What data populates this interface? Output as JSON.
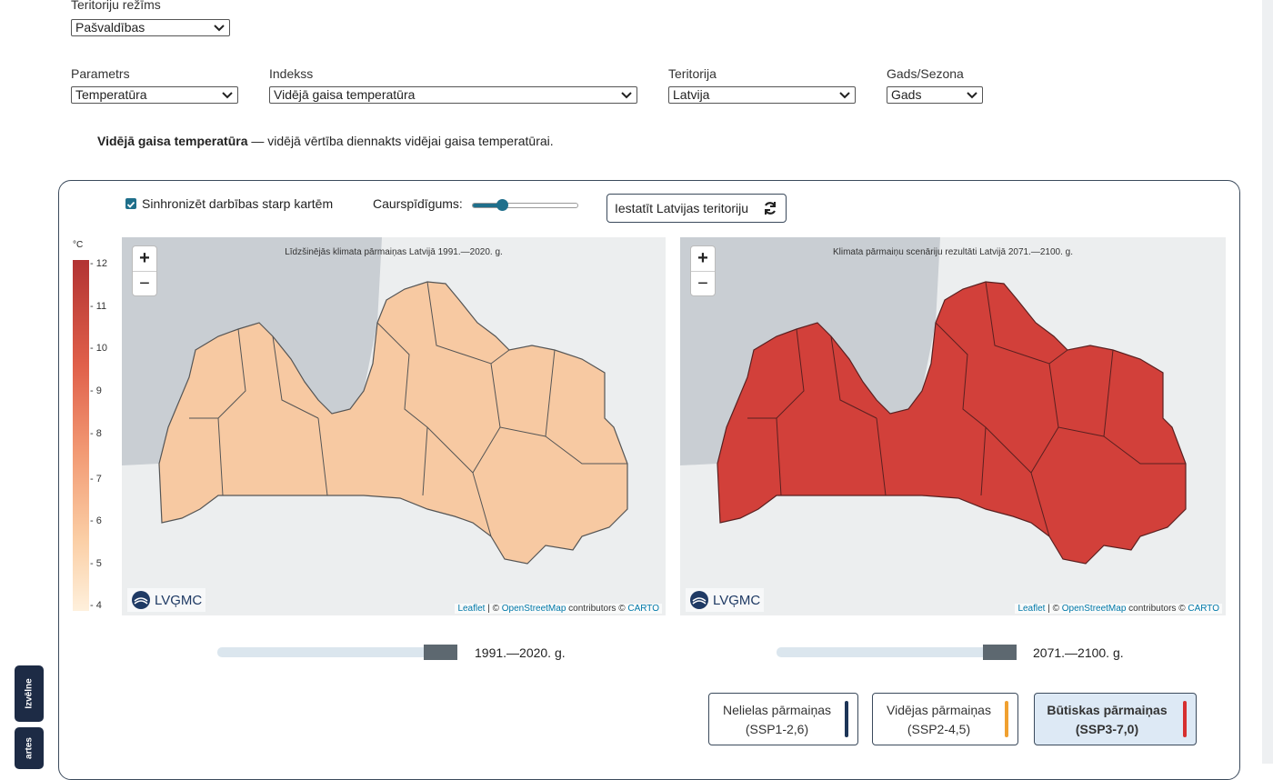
{
  "territory_mode": {
    "label": "Teritoriju režīms",
    "value": "Pašvaldības"
  },
  "filters": [
    {
      "label": "Parametrs",
      "value": "Temperatūra"
    },
    {
      "label": "Indekss",
      "value": "Vidējā gaisa temperatūra"
    },
    {
      "label": "Teritorija",
      "value": "Latvija"
    },
    {
      "label": "Gads/Sezona",
      "value": "Gads"
    }
  ],
  "description": {
    "term": "Vidējā gaisa temperatūra",
    "text": "— vidējā vērtība diennakts vidējai gaisa temperatūrai."
  },
  "controls": {
    "sync": "Sinhronizēt darbības starp kartēm",
    "opacity": "Caurspīdīgums:",
    "reset": "Iestatīt Latvijas teritoriju"
  },
  "legend": {
    "unit": "°C",
    "ticks": [
      12,
      11,
      10,
      9,
      8,
      7,
      6,
      5,
      4
    ]
  },
  "zoom": {
    "in": "+",
    "out": "−"
  },
  "attribution": {
    "logo": "LVĢMC",
    "leaflet": "Leaflet",
    "sep": "| ©",
    "osm": "OpenStreetMap",
    "contributors": "contributors ©",
    "carto": "CARTO"
  },
  "maps": [
    {
      "title": "Līdzšinējās klimata pārmaiņas Latvijā 1991.—2020. g.",
      "period": "1991.—2020. g."
    },
    {
      "title": "Klimata pārmaiņu scenāriju rezultāti Latvijā 2071.—2100. g.",
      "period": "2071.—2100. g."
    }
  ],
  "scenarios": [
    {
      "name": "Nelielas pārmaiņas",
      "code": "(SSP1-2,6)"
    },
    {
      "name": "Vidējas pārmaiņas",
      "code": "(SSP2-4,5)"
    },
    {
      "name": "Būtiskas pārmaiņas",
      "code": "(SSP3-7,0)"
    }
  ],
  "side_tabs": [
    "Izvēlne",
    "artes"
  ]
}
